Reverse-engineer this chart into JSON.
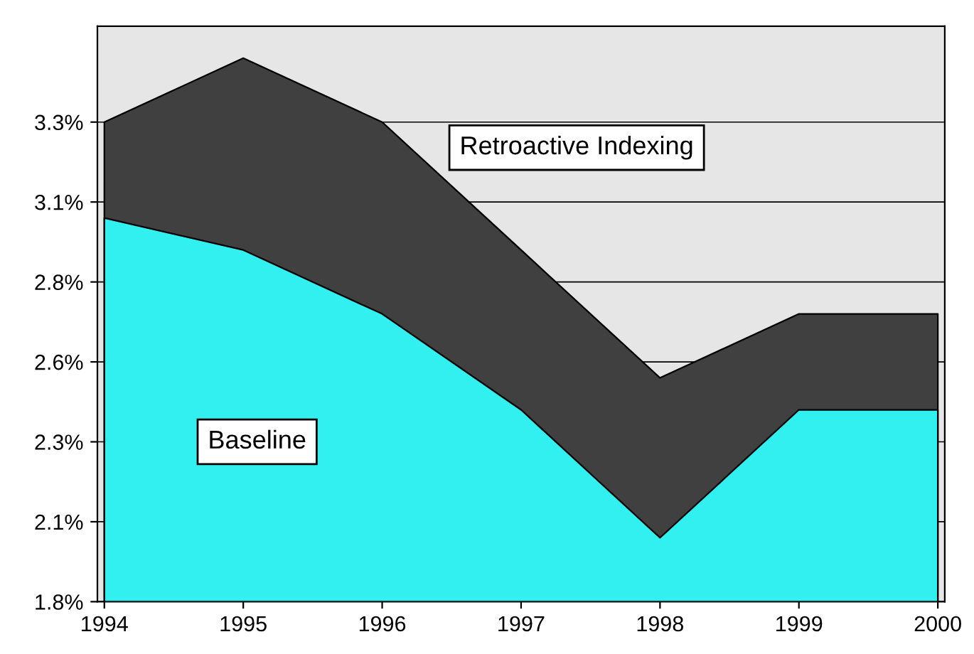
{
  "chart_data": {
    "type": "area",
    "categories": [
      "1994",
      "1995",
      "1996",
      "1997",
      "1998",
      "1999",
      "2000"
    ],
    "series": [
      {
        "name": "Retroactive Indexing",
        "color": "#404040",
        "values": [
          3.3,
          3.5,
          3.3,
          2.9,
          2.5,
          2.7,
          2.7
        ]
      },
      {
        "name": "Baseline",
        "color": "#33f0f0",
        "values": [
          3.0,
          2.9,
          2.7,
          2.4,
          2.0,
          2.4,
          2.4
        ]
      }
    ],
    "ylim": [
      1.8,
      3.6
    ],
    "yticks": [
      {
        "value": 1.8,
        "label": "1.8%"
      },
      {
        "value": 2.05,
        "label": "2.1%"
      },
      {
        "value": 2.3,
        "label": "2.3%"
      },
      {
        "value": 2.55,
        "label": "2.6%"
      },
      {
        "value": 2.8,
        "label": "2.8%"
      },
      {
        "value": 3.05,
        "label": "3.1%"
      },
      {
        "value": 3.3,
        "label": "3.3%"
      }
    ],
    "grid": "y"
  }
}
